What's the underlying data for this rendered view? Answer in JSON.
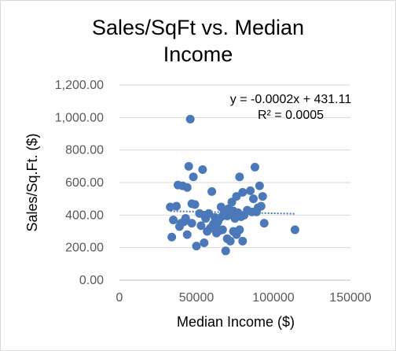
{
  "chart_data": {
    "type": "scatter",
    "title_lines": [
      "Sales/SqFt vs. Median",
      "Income"
    ],
    "xlabel": "Median Income ($)",
    "ylabel": "Sales/Sq.Ft. ($)",
    "xlim": [
      0,
      150000
    ],
    "ylim": [
      0,
      1200
    ],
    "x_ticks": [
      "0",
      "50000",
      "100000",
      "150000"
    ],
    "y_ticks": [
      "0.00",
      "200.00",
      "400.00",
      "600.00",
      "800.00",
      "1,000.00",
      "1,200.00"
    ],
    "grid": true,
    "legend": "none",
    "trendline": {
      "type": "linear",
      "slope": -0.0002,
      "intercept": 431.11,
      "x_range": [
        33000,
        114000
      ],
      "equation": "y = -0.0002x + 431.11",
      "r_squared": "R² = 0.0005"
    },
    "colors": {
      "marker": "#4a78b8",
      "trendline": "#4a78b8",
      "grid": "#d9d9d9"
    },
    "series": [
      {
        "x": [
          46000,
          45000,
          48000,
          54000,
          41000,
          44000,
          38000,
          49000,
          47000,
          55000,
          60000,
          78000,
          88000,
          91000,
          85000,
          93000,
          80000,
          87000,
          76000,
          71000,
          73000,
          92000,
          90000,
          72000,
          66000,
          69000,
          74000,
          58000,
          62000,
          52000,
          56000,
          64000,
          68000,
          67000,
          65000,
          63000,
          70000,
          75000,
          77000,
          79000,
          81000,
          83000,
          86000,
          89000,
          94000,
          33000,
          37000,
          40000,
          43000,
          42000,
          39000,
          35000,
          34000,
          44000,
          47000,
          50000,
          53000,
          57000,
          59000,
          61000,
          61000,
          63000,
          65000,
          67000,
          69000,
          70000,
          72000,
          74000,
          76000,
          78000,
          80000,
          55000,
          60000,
          114000
        ],
        "y": [
          990,
          700,
          635,
          680,
          580,
          570,
          585,
          465,
          470,
          400,
          545,
          635,
          695,
          580,
          550,
          515,
          540,
          500,
          515,
          440,
          480,
          455,
          445,
          420,
          450,
          420,
          425,
          410,
          385,
          410,
          380,
          360,
          420,
          395,
          380,
          345,
          395,
          380,
          415,
          390,
          400,
          430,
          420,
          420,
          350,
          450,
          455,
          350,
          380,
          360,
          330,
          370,
          265,
          280,
          350,
          210,
          335,
          300,
          320,
          345,
          330,
          290,
          305,
          310,
          180,
          255,
          240,
          300,
          280,
          310,
          240,
          230,
          320,
          310
        ]
      }
    ]
  }
}
